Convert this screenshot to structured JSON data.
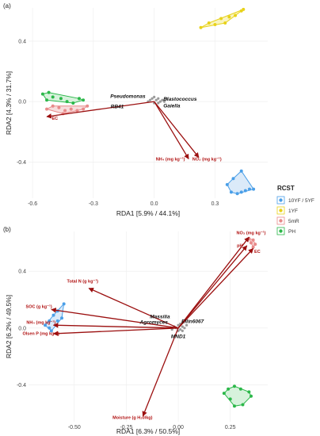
{
  "chart_data": [
    {
      "type": "scatter",
      "panel_label": "(a)",
      "xlabel": "RDA1 [5.9% / 44.1%]",
      "ylabel": "RDA2 [4.3% / 31.7%]",
      "xlim": [
        -0.62,
        0.56
      ],
      "ylim": [
        -0.64,
        0.62
      ],
      "xticks": [
        {
          "v": -0.6,
          "label": "-0.6"
        },
        {
          "v": -0.3,
          "label": "-0.3"
        },
        {
          "v": 0.0,
          "label": "0.0"
        },
        {
          "v": 0.3,
          "label": "0.3"
        }
      ],
      "yticks": [
        {
          "v": 0.4,
          "label": "0.4"
        },
        {
          "v": 0.0,
          "label": "0.0"
        },
        {
          "v": -0.4,
          "label": "-0.4"
        }
      ],
      "groups": [
        {
          "name": "10YF / 5YF",
          "color": "#4a9fe8",
          "fill": "#cfe3f7",
          "points": [
            [
              0.36,
              -0.55
            ],
            [
              0.38,
              -0.6
            ],
            [
              0.41,
              -0.61
            ],
            [
              0.43,
              -0.6
            ],
            [
              0.45,
              -0.59
            ],
            [
              0.47,
              -0.58
            ],
            [
              0.49,
              -0.58
            ],
            [
              0.43,
              -0.46
            ],
            [
              0.39,
              -0.51
            ]
          ]
        },
        {
          "name": "1YF",
          "color": "#e8d21a",
          "fill": "#f7f0a8",
          "points": [
            [
              0.23,
              0.49
            ],
            [
              0.27,
              0.52
            ],
            [
              0.3,
              0.51
            ],
            [
              0.33,
              0.55
            ],
            [
              0.37,
              0.56
            ],
            [
              0.4,
              0.57
            ],
            [
              0.43,
              0.6
            ],
            [
              0.44,
              0.61
            ],
            [
              0.35,
              0.52
            ]
          ]
        },
        {
          "name": "5mR",
          "color": "#e88a8a",
          "fill": "#f6d2d2",
          "points": [
            [
              -0.53,
              -0.05
            ],
            [
              -0.5,
              -0.03
            ],
            [
              -0.47,
              -0.04
            ],
            [
              -0.44,
              -0.06
            ],
            [
              -0.41,
              -0.05
            ],
            [
              -0.38,
              -0.06
            ],
            [
              -0.35,
              -0.05
            ],
            [
              -0.33,
              -0.03
            ],
            [
              -0.45,
              -0.08
            ]
          ]
        },
        {
          "name": "PH",
          "color": "#2cb84a",
          "fill": "#c9eed0",
          "points": [
            [
              -0.55,
              0.05
            ],
            [
              -0.53,
              0.01
            ],
            [
              -0.5,
              0.03
            ],
            [
              -0.46,
              0.02
            ],
            [
              -0.43,
              0.0
            ],
            [
              -0.4,
              -0.01
            ],
            [
              -0.37,
              0.02
            ],
            [
              -0.35,
              0.01
            ],
            [
              -0.52,
              0.06
            ]
          ]
        }
      ],
      "gray_points": [
        [
          -0.02,
          0.01
        ],
        [
          -0.01,
          0.02
        ],
        [
          0.0,
          0.03
        ],
        [
          0.01,
          0.01
        ],
        [
          0.02,
          0.02
        ],
        [
          0.03,
          0.0
        ],
        [
          0.04,
          0.01
        ],
        [
          0.05,
          0.0
        ],
        [
          -0.03,
          0.0
        ],
        [
          0.0,
          -0.01
        ],
        [
          0.02,
          -0.01
        ],
        [
          0.06,
          0.02
        ]
      ],
      "taxa": [
        {
          "label": "Pseudomonas",
          "x": -0.13,
          "y": 0.025,
          "anchor": "middle"
        },
        {
          "label": "Blastococcus",
          "x": 0.045,
          "y": 0.005,
          "anchor": "start"
        },
        {
          "label": "RB41",
          "x": -0.15,
          "y": -0.045,
          "anchor": "end"
        },
        {
          "label": "Gaiella",
          "x": 0.045,
          "y": -0.04,
          "anchor": "start"
        }
      ],
      "arrows": [
        {
          "label": "EC",
          "x": -0.53,
          "y": -0.1,
          "lx": -0.49,
          "ly": -0.12,
          "anchor": "middle"
        },
        {
          "label": "NH₄ (mg kg⁻¹)",
          "x": 0.17,
          "y": -0.38,
          "lx": 0.08,
          "ly": -0.39,
          "anchor": "middle"
        },
        {
          "label": "NO₃ (mg kg⁻¹)",
          "x": 0.22,
          "y": -0.37,
          "lx": 0.26,
          "ly": -0.39,
          "anchor": "middle"
        }
      ]
    },
    {
      "type": "scatter",
      "panel_label": "(b)",
      "xlabel": "RDA1 [6.3% / 50.5%]",
      "ylabel": "RDA2 [6.2% / 49.5%]",
      "xlim": [
        -0.72,
        0.43
      ],
      "ylim": [
        -0.66,
        0.68
      ],
      "xticks": [
        {
          "v": -0.5,
          "label": "-0.50"
        },
        {
          "v": -0.25,
          "label": "-0.25"
        },
        {
          "v": 0.0,
          "label": "0.00"
        },
        {
          "v": 0.25,
          "label": "0.25"
        }
      ],
      "yticks": [
        {
          "v": 0.4,
          "label": "0.4"
        },
        {
          "v": 0.0,
          "label": "0.0"
        },
        {
          "v": -0.4,
          "label": "-0.4"
        }
      ],
      "groups": [
        {
          "name": "10YF / 5YF",
          "color": "#4a9fe8",
          "fill": "#cfe3f7",
          "points": [
            [
              -0.64,
              0.02
            ],
            [
              -0.62,
              0.05
            ],
            [
              -0.6,
              0.09
            ],
            [
              -0.58,
              0.12
            ],
            [
              -0.55,
              0.17
            ],
            [
              -0.58,
              0.05
            ],
            [
              -0.61,
              -0.02
            ],
            [
              -0.62,
              0.0
            ],
            [
              -0.56,
              0.07
            ]
          ]
        },
        {
          "name": "1YF",
          "color": "#e8d21a",
          "fill": "#f7f0a8",
          "points": []
        },
        {
          "name": "5mR",
          "color": "#e88a8a",
          "fill": "#f6d2d2",
          "points": [
            [
              0.34,
              0.63
            ],
            [
              0.36,
              0.62
            ],
            [
              0.35,
              0.6
            ],
            [
              0.37,
              0.59
            ],
            [
              0.36,
              0.57
            ]
          ]
        },
        {
          "name": "PH",
          "color": "#2cb84a",
          "fill": "#c9eed0",
          "points": [
            [
              0.22,
              -0.46
            ],
            [
              0.24,
              -0.43
            ],
            [
              0.27,
              -0.41
            ],
            [
              0.3,
              -0.43
            ],
            [
              0.34,
              -0.45
            ],
            [
              0.35,
              -0.48
            ],
            [
              0.31,
              -0.54
            ],
            [
              0.27,
              -0.55
            ],
            [
              0.25,
              -0.5
            ]
          ]
        }
      ],
      "gray_points": [
        [
          -0.01,
          0.0
        ],
        [
          0.0,
          0.02
        ],
        [
          0.01,
          -0.01
        ],
        [
          0.02,
          0.01
        ],
        [
          0.03,
          0.0
        ],
        [
          0.0,
          -0.02
        ],
        [
          -0.02,
          0.01
        ],
        [
          0.04,
          0.02
        ],
        [
          0.01,
          0.03
        ],
        [
          0.02,
          -0.02
        ],
        [
          -0.03,
          -0.01
        ]
      ],
      "taxa": [
        {
          "label": "Massilia",
          "x": -0.04,
          "y": 0.07,
          "anchor": "end"
        },
        {
          "label": "Agromyces",
          "x": -0.05,
          "y": 0.03,
          "anchor": "end"
        },
        {
          "label": "Ellin6067",
          "x": 0.015,
          "y": 0.035,
          "anchor": "start"
        },
        {
          "label": "MND1",
          "x": 0.0,
          "y": -0.07,
          "anchor": "middle"
        }
      ],
      "arrows": [
        {
          "label": "NO₃ (mg kg⁻¹)",
          "x": 0.34,
          "y": 0.64,
          "lx": 0.35,
          "ly": 0.66,
          "anchor": "middle"
        },
        {
          "label": "pH",
          "x": 0.33,
          "y": 0.58,
          "lx": 0.31,
          "ly": 0.57,
          "anchor": "end"
        },
        {
          "label": "EC",
          "x": 0.36,
          "y": 0.56,
          "lx": 0.38,
          "ly": 0.53,
          "anchor": "middle"
        },
        {
          "label": "Total N (g kg⁻¹)",
          "x": -0.43,
          "y": 0.28,
          "lx": -0.46,
          "ly": 0.32,
          "anchor": "middle"
        },
        {
          "label": "SOC (g kg⁻¹)",
          "x": -0.61,
          "y": 0.13,
          "lx": -0.67,
          "ly": 0.14,
          "anchor": "middle"
        },
        {
          "label": "NH₄ (mg kg⁻¹)",
          "x": -0.6,
          "y": 0.02,
          "lx": -0.66,
          "ly": 0.03,
          "anchor": "middle"
        },
        {
          "label": "Olsen P (mg kg⁻¹)",
          "x": -0.6,
          "y": -0.04,
          "lx": -0.66,
          "ly": -0.05,
          "anchor": "middle"
        },
        {
          "label": "Moisture (g H₂0/kg)",
          "x": -0.17,
          "y": -0.62,
          "lx": -0.22,
          "ly": -0.64,
          "anchor": "middle"
        }
      ]
    }
  ],
  "legend": {
    "title": "RCST",
    "items": [
      "10YF / 5YF",
      "1YF",
      "5mR",
      "PH"
    ],
    "colors": [
      "#4a9fe8",
      "#e8d21a",
      "#e88a8a",
      "#2cb84a"
    ]
  }
}
